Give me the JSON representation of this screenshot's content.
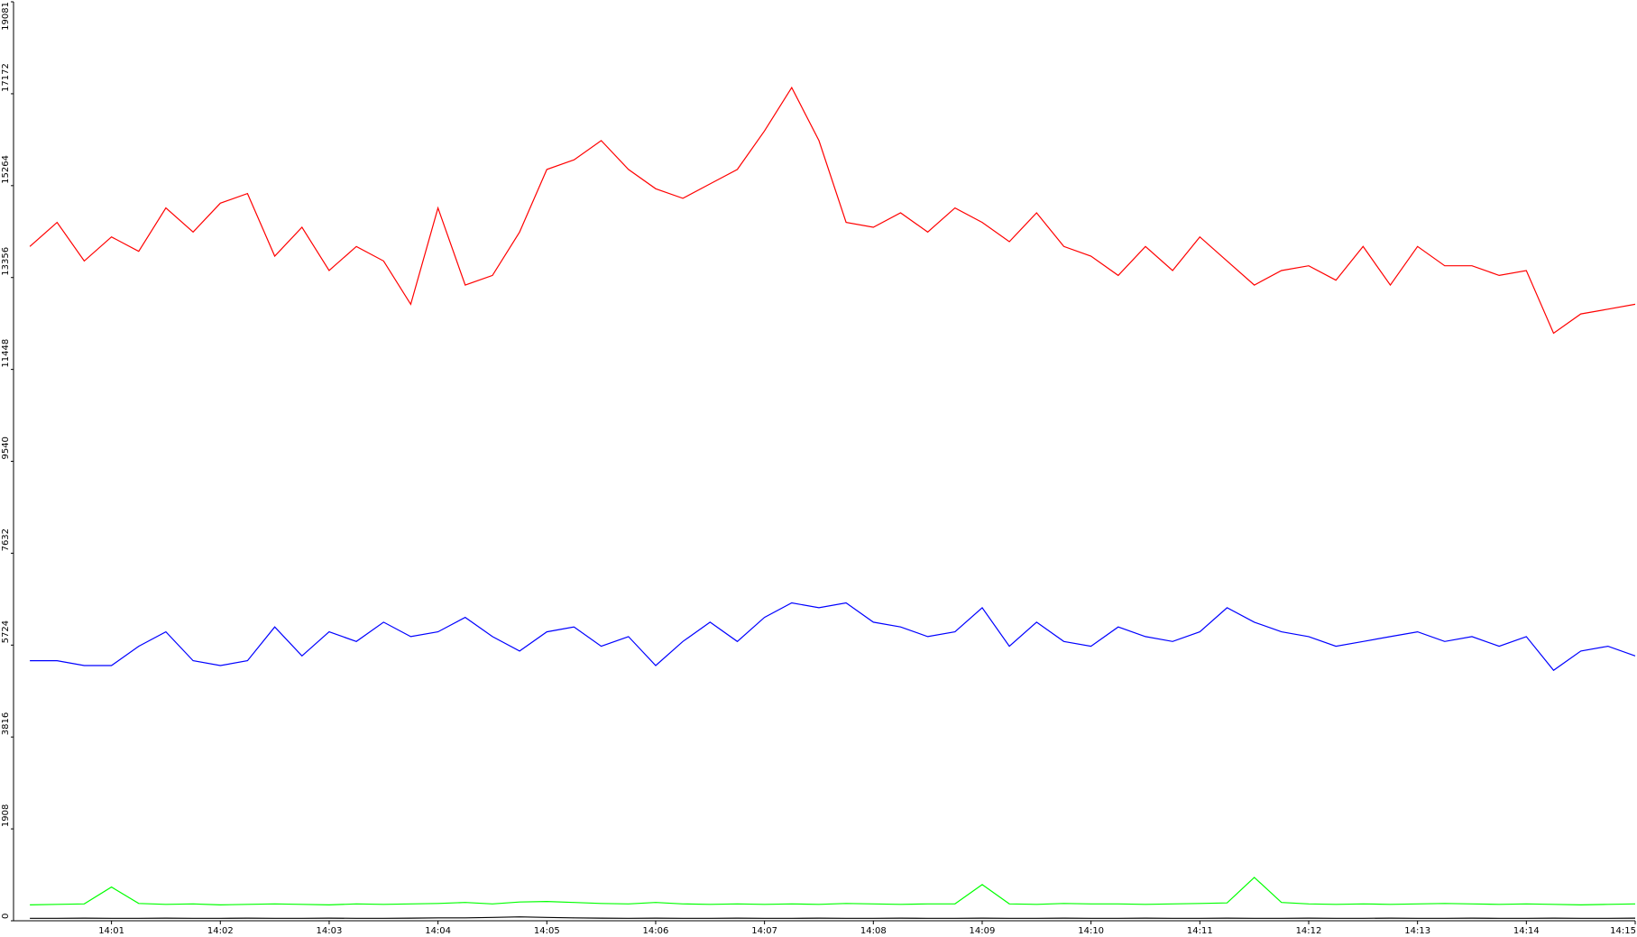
{
  "chart_data": {
    "type": "line",
    "x": [
      0.25,
      0.5,
      0.75,
      1,
      1.25,
      1.5,
      1.75,
      2,
      2.25,
      2.5,
      2.75,
      3,
      3.25,
      3.5,
      3.75,
      4,
      4.25,
      4.5,
      4.75,
      5,
      5.25,
      5.5,
      5.75,
      6,
      6.25,
      6.5,
      6.75,
      7,
      7.25,
      7.5,
      7.75,
      8,
      8.25,
      8.5,
      8.75,
      9,
      9.25,
      9.5,
      9.75,
      10,
      10.25,
      10.5,
      10.75,
      11,
      11.25,
      11.5,
      11.75,
      12,
      12.25,
      12.5,
      12.75,
      13,
      13.25,
      13.5,
      13.75,
      14,
      14.25,
      14.5,
      14.75,
      15
    ],
    "series": [
      {
        "color": "#ff0000",
        "values": [
          14000,
          14500,
          13700,
          14200,
          13900,
          14800,
          14300,
          14900,
          15100,
          13800,
          14400,
          13500,
          14000,
          13700,
          12800,
          14800,
          13200,
          13400,
          14300,
          15600,
          15800,
          16200,
          15600,
          15200,
          15000,
          15300,
          15600,
          16400,
          17300,
          16200,
          14500,
          14400,
          14700,
          14300,
          14800,
          14500,
          14100,
          14700,
          14000,
          13800,
          13400,
          14000,
          13500,
          14200,
          13700,
          13200,
          13500,
          13600,
          13300,
          14000,
          13200,
          14000,
          13600,
          13600,
          13400,
          13500,
          12200,
          12600,
          12700,
          12800
        ]
      },
      {
        "color": "#0000ff",
        "values": [
          5400,
          5400,
          5300,
          5300,
          5700,
          6000,
          5400,
          5300,
          5400,
          6100,
          5500,
          6000,
          5800,
          6200,
          5900,
          6000,
          6300,
          5900,
          5600,
          6000,
          6100,
          5700,
          5900,
          5300,
          5800,
          6200,
          5800,
          6300,
          6600,
          6500,
          6600,
          6200,
          6100,
          5900,
          6000,
          6500,
          5700,
          6200,
          5800,
          5700,
          6100,
          5900,
          5800,
          6000,
          6500,
          6200,
          6000,
          5900,
          5700,
          5800,
          5900,
          6000,
          5800,
          5900,
          5700,
          5900,
          5200,
          5600,
          5700,
          5500
        ]
      },
      {
        "color": "#00ff00",
        "values": [
          330,
          340,
          350,
          700,
          360,
          340,
          350,
          330,
          340,
          350,
          340,
          330,
          350,
          340,
          350,
          360,
          380,
          350,
          390,
          400,
          380,
          360,
          350,
          380,
          350,
          340,
          350,
          340,
          350,
          340,
          360,
          350,
          340,
          350,
          350,
          750,
          350,
          340,
          360,
          350,
          350,
          340,
          350,
          360,
          370,
          900,
          380,
          350,
          340,
          350,
          340,
          350,
          360,
          350,
          340,
          350,
          340,
          330,
          340,
          350
        ]
      },
      {
        "color": "#000000",
        "values": [
          50,
          50,
          55,
          50,
          50,
          55,
          50,
          50,
          55,
          50,
          50,
          55,
          50,
          50,
          55,
          60,
          60,
          70,
          80,
          70,
          60,
          55,
          50,
          55,
          50,
          50,
          55,
          50,
          50,
          55,
          50,
          50,
          55,
          50,
          50,
          55,
          50,
          50,
          55,
          50,
          50,
          55,
          50,
          50,
          55,
          50,
          50,
          55,
          50,
          50,
          55,
          50,
          50,
          55,
          50,
          50,
          55,
          50,
          50,
          55
        ]
      }
    ],
    "xlim": [
      0.1,
      15
    ],
    "xticks": [
      {
        "value": 1,
        "label": "14:01"
      },
      {
        "value": 2,
        "label": "14:02"
      },
      {
        "value": 3,
        "label": "14:03"
      },
      {
        "value": 4,
        "label": "14:04"
      },
      {
        "value": 5,
        "label": "14:05"
      },
      {
        "value": 6,
        "label": "14:06"
      },
      {
        "value": 7,
        "label": "14:07"
      },
      {
        "value": 8,
        "label": "14:08"
      },
      {
        "value": 9,
        "label": "14:09"
      },
      {
        "value": 10,
        "label": "14:10"
      },
      {
        "value": 11,
        "label": "14:11"
      },
      {
        "value": 12,
        "label": "14:12"
      },
      {
        "value": 13,
        "label": "14:13"
      },
      {
        "value": 14,
        "label": "14:14"
      },
      {
        "value": 15,
        "label": "14:15"
      }
    ],
    "ylim": [
      0,
      19081
    ],
    "yticks": [
      0,
      1908,
      3816,
      5724,
      7632,
      9540,
      11448,
      13356,
      15264,
      17172,
      19081
    ],
    "grid": false
  }
}
